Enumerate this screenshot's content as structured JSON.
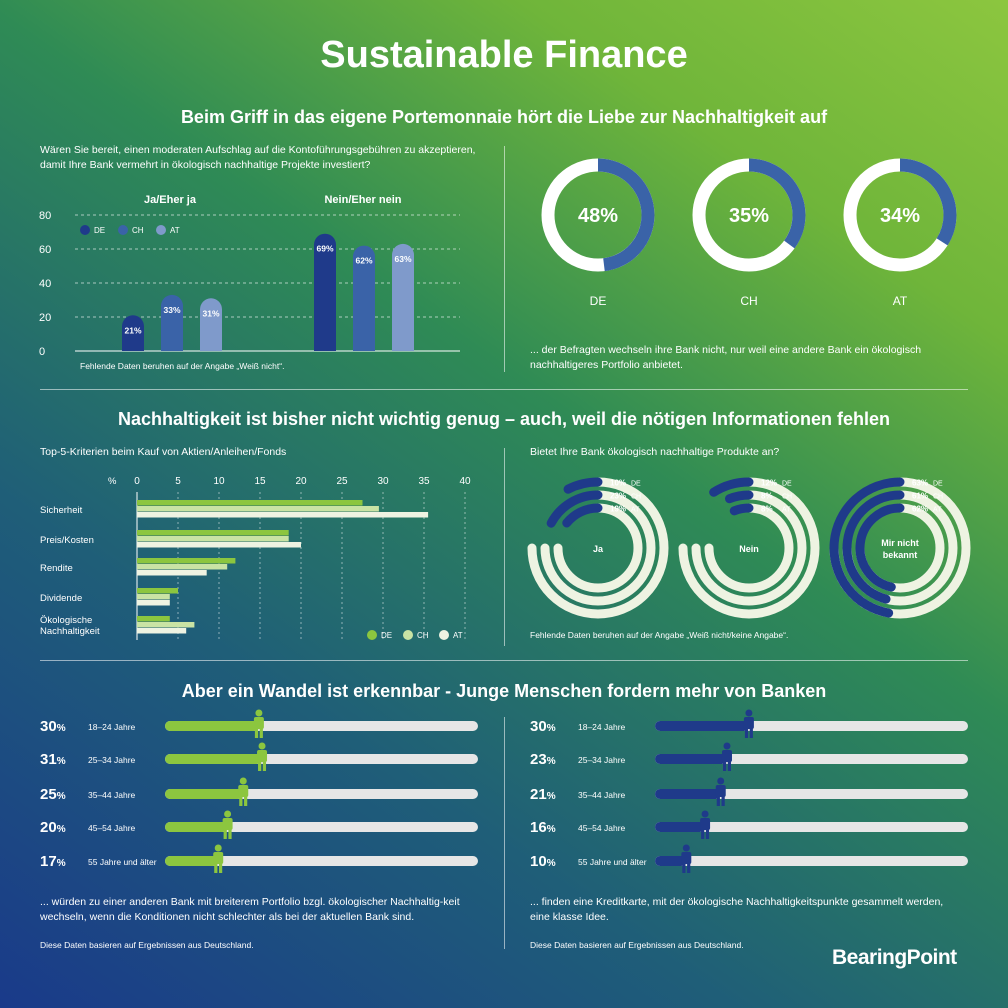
{
  "title": "Sustainable Finance",
  "section1": {
    "heading": "Beim Griff in das eigene Portemonnaie hört die Liebe zur Nachhaltigkeit auf",
    "question": "Wären Sie bereit, einen moderaten Aufschlag auf die Kontoführungsgebühren zu akzeptieren, damit Ihre Bank vermehrt in ökologisch nachhaltige Projekte investiert?",
    "group_yes": "Ja/Eher ja",
    "group_no": "Nein/Eher nein",
    "legend": [
      "DE",
      "CH",
      "AT"
    ],
    "footnote": "Fehlende Daten beruhen auf der Angabe „Weiß nicht“.",
    "donut_note": "... der Befragten wechseln ihre Bank nicht, nur weil eine andere Bank ein ökologisch nachhaltigeres Portfolio anbietet."
  },
  "section2": {
    "heading": "Nachhaltigkeit ist bisher nicht wichtig genug – auch, weil die nötigen Informationen fehlen",
    "criteria_title": "Top-5-Kriterien beim Kauf von Aktien/Anleihen/Fonds",
    "pct_label": "%",
    "bank_question": "Bietet Ihre Bank ökologisch nachhaltige Produkte an?",
    "bank_footnote": "Fehlende Daten beruhen auf der Angabe „Weiß nicht/keine Angabe“."
  },
  "section3": {
    "heading": "Aber ein Wandel ist erkennbar - Junge Menschen fordern mehr von Banken",
    "left_note": "... würden zu einer anderen Bank mit breiterem Portfolio bzgl. ökologischer Nachhaltig-keit wechseln, wenn die Konditionen nicht schlechter als bei der aktuellen Bank sind.",
    "right_note": "... finden eine Kreditkarte, mit der ökologische Nachhaltigkeitspunkte gesammelt werden, eine klasse Idee.",
    "source_left": "Diese Daten basieren auf Ergebnissen aus Deutschland.",
    "source_right": "Diese Daten basieren auf Ergebnissen aus Deutschland."
  },
  "logo": "BearingPoint",
  "colors": {
    "navy": "#1f3a8a",
    "mid_blue": "#3a63a8",
    "light_blue": "#7f9acb",
    "green": "#8cc63f",
    "pale_green": "#c9e3a4",
    "cream": "#eef3e2",
    "track": "#e6e6e6"
  },
  "chart_data": [
    {
      "type": "bar",
      "categories": [
        "Ja/Eher ja",
        "Nein/Eher nein"
      ],
      "series": [
        {
          "name": "DE",
          "values": [
            21,
            69
          ]
        },
        {
          "name": "CH",
          "values": [
            33,
            62
          ]
        },
        {
          "name": "AT",
          "values": [
            31,
            63
          ]
        }
      ],
      "ylim": [
        0,
        80
      ],
      "yticks": [
        0,
        20,
        40,
        60,
        80
      ],
      "grid": true
    },
    {
      "type": "pie",
      "categories": [
        "DE",
        "CH",
        "AT"
      ],
      "values": [
        48,
        35,
        34
      ],
      "labels": [
        "48%",
        "35%",
        "34%"
      ]
    },
    {
      "type": "bar",
      "orientation": "horizontal",
      "categories": [
        "Sicherheit",
        "Preis/Kosten",
        "Rendite",
        "Dividende",
        "Ökologische Nachhaltigkeit"
      ],
      "series": [
        {
          "name": "DE",
          "values": [
            27.5,
            18.5,
            12,
            5,
            4
          ]
        },
        {
          "name": "CH",
          "values": [
            29.5,
            18.5,
            11,
            4,
            7
          ]
        },
        {
          "name": "AT",
          "values": [
            35.5,
            20,
            8.5,
            4,
            6
          ]
        }
      ],
      "xlim": [
        0,
        40
      ],
      "xticks": [
        0,
        5,
        10,
        15,
        20,
        25,
        30,
        35,
        40
      ]
    },
    {
      "type": "pie",
      "groups": [
        {
          "name": "Ja",
          "rows": [
            {
              "label": "10%",
              "country": "DE",
              "value": 10
            },
            {
              "label": "23%",
              "country": "CH",
              "value": 23
            },
            {
              "label": "19%",
              "country": "AT",
              "value": 19
            }
          ]
        },
        {
          "name": "Nein",
          "rows": [
            {
              "label": "12%",
              "country": "DE",
              "value": 12
            },
            {
              "label": "8%",
              "country": "CH",
              "value": 8
            },
            {
              "label": "8%",
              "country": "AT",
              "value": 8
            }
          ]
        },
        {
          "name": "Mir nicht bekannt",
          "rows": [
            {
              "label": "63%",
              "country": "DE",
              "value": 63
            },
            {
              "label": "61%",
              "country": "CH",
              "value": 61
            },
            {
              "label": "62%",
              "country": "AT",
              "value": 62
            }
          ]
        }
      ]
    },
    {
      "type": "bar",
      "orientation": "horizontal",
      "categories": [
        "18–24 Jahre",
        "25–34 Jahre",
        "35–44 Jahre",
        "45–54 Jahre",
        "55 Jahre und älter"
      ],
      "values": [
        30,
        31,
        25,
        20,
        17
      ],
      "labels": [
        "30%",
        "31%",
        "25%",
        "20%",
        "17%"
      ],
      "xlim": [
        0,
        100
      ]
    },
    {
      "type": "bar",
      "orientation": "horizontal",
      "categories": [
        "18–24 Jahre",
        "25–34 Jahre",
        "35–44 Jahre",
        "45–54 Jahre",
        "55 Jahre und älter"
      ],
      "values": [
        30,
        23,
        21,
        16,
        10
      ],
      "labels": [
        "30%",
        "23%",
        "21%",
        "16%",
        "10%"
      ],
      "xlim": [
        0,
        100
      ]
    }
  ]
}
